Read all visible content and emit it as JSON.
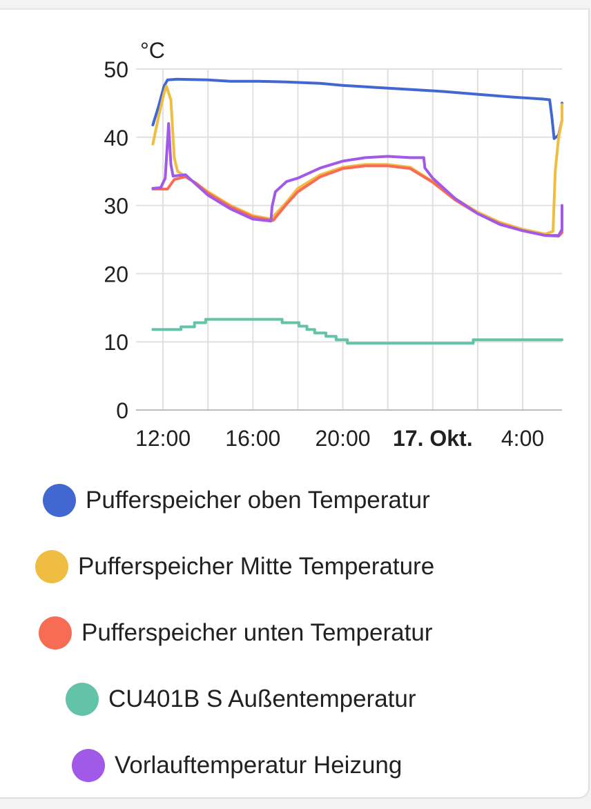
{
  "chart_data": {
    "type": "line",
    "ylabel": "°C",
    "ylim": [
      0,
      50
    ],
    "yticks": [
      0,
      10,
      20,
      30,
      40,
      50
    ],
    "x_unit": "hours since 12:00",
    "xlim": [
      -1.2,
      17.75
    ],
    "xticks": [
      {
        "x": 0,
        "label": "12:00",
        "bold": false
      },
      {
        "x": 4,
        "label": "16:00",
        "bold": false
      },
      {
        "x": 8,
        "label": "20:00",
        "bold": false
      },
      {
        "x": 12,
        "label": "17. Okt.",
        "bold": true
      },
      {
        "x": 16,
        "label": "4:00",
        "bold": false
      }
    ],
    "gridlines_x": [
      0,
      2,
      4,
      6,
      8,
      10,
      12,
      14,
      16
    ],
    "grid": true,
    "legend_position": "bottom",
    "series": [
      {
        "name": "Pufferspeicher oben Temperatur",
        "color": "#4267d0",
        "points": [
          [
            -0.45,
            41.8
          ],
          [
            -0.2,
            44.5
          ],
          [
            0.05,
            47.5
          ],
          [
            0.2,
            48.4
          ],
          [
            0.6,
            48.5
          ],
          [
            2,
            48.4
          ],
          [
            3,
            48.2
          ],
          [
            4.3,
            48.2
          ],
          [
            5.5,
            48.1
          ],
          [
            7,
            47.9
          ],
          [
            8,
            47.6
          ],
          [
            9.5,
            47.3
          ],
          [
            11,
            47.0
          ],
          [
            12.5,
            46.7
          ],
          [
            14,
            46.3
          ],
          [
            15.5,
            45.9
          ],
          [
            16.9,
            45.6
          ],
          [
            17.2,
            45.5
          ],
          [
            17.3,
            43.0
          ],
          [
            17.4,
            39.8
          ],
          [
            17.6,
            40.3
          ],
          [
            17.9,
            42.5
          ],
          [
            18.2,
            44.0
          ],
          [
            18.45,
            45.0
          ]
        ]
      },
      {
        "name": "Pufferspeicher Mitte Temperature",
        "color": "#f0bd43",
        "points": [
          [
            -0.45,
            39.0
          ],
          [
            -0.2,
            43.0
          ],
          [
            0.05,
            46.5
          ],
          [
            0.15,
            47.5
          ],
          [
            0.35,
            45.5
          ],
          [
            0.5,
            37.0
          ],
          [
            0.65,
            35.0
          ],
          [
            1.2,
            33.8
          ],
          [
            2,
            32.0
          ],
          [
            3,
            30.0
          ],
          [
            4,
            28.5
          ],
          [
            4.8,
            28.0
          ],
          [
            5.5,
            30.5
          ],
          [
            6,
            32.5
          ],
          [
            7,
            34.5
          ],
          [
            8,
            35.6
          ],
          [
            9,
            36.0
          ],
          [
            10,
            36.0
          ],
          [
            11,
            35.6
          ],
          [
            12,
            33.5
          ],
          [
            13,
            31.0
          ],
          [
            14,
            29.0
          ],
          [
            15,
            27.5
          ],
          [
            16,
            26.5
          ],
          [
            17,
            25.8
          ],
          [
            17.35,
            26.2
          ],
          [
            17.45,
            35.0
          ],
          [
            17.6,
            40.0
          ],
          [
            17.9,
            42.5
          ],
          [
            18.2,
            44.0
          ],
          [
            18.45,
            44.8
          ]
        ]
      },
      {
        "name": "Pufferspeicher unten Temperatur",
        "color": "#f76c55",
        "points": [
          [
            -0.45,
            32.4
          ],
          [
            -0.1,
            32.4
          ],
          [
            0.2,
            32.4
          ],
          [
            0.5,
            33.8
          ],
          [
            1,
            34.2
          ],
          [
            1.5,
            33.2
          ],
          [
            2,
            31.8
          ],
          [
            3,
            29.8
          ],
          [
            4,
            28.3
          ],
          [
            4.9,
            27.8
          ],
          [
            5.5,
            30.2
          ],
          [
            6,
            32.0
          ],
          [
            7,
            34.2
          ],
          [
            8,
            35.4
          ],
          [
            9,
            35.8
          ],
          [
            10,
            35.8
          ],
          [
            11,
            35.4
          ],
          [
            12,
            33.4
          ],
          [
            13,
            30.8
          ],
          [
            14,
            28.8
          ],
          [
            15,
            27.3
          ],
          [
            16,
            26.3
          ],
          [
            17,
            25.6
          ],
          [
            17.6,
            25.5
          ],
          [
            18.0,
            26.0
          ],
          [
            18.2,
            26.8
          ],
          [
            18.45,
            27.8
          ]
        ]
      },
      {
        "name": "CU401B S Außentemperatur",
        "color": "#63c3a8",
        "points": [
          [
            -0.45,
            11.8
          ],
          [
            0.8,
            11.8
          ],
          [
            0.8,
            12.2
          ],
          [
            1.4,
            12.2
          ],
          [
            1.4,
            12.8
          ],
          [
            1.9,
            12.8
          ],
          [
            1.9,
            13.3
          ],
          [
            5.3,
            13.3
          ],
          [
            5.3,
            12.8
          ],
          [
            6.05,
            12.8
          ],
          [
            6.05,
            12.3
          ],
          [
            6.4,
            12.3
          ],
          [
            6.4,
            11.8
          ],
          [
            6.75,
            11.8
          ],
          [
            6.75,
            11.3
          ],
          [
            7.25,
            11.3
          ],
          [
            7.25,
            10.8
          ],
          [
            7.7,
            10.8
          ],
          [
            7.7,
            10.3
          ],
          [
            8.2,
            10.3
          ],
          [
            8.2,
            9.8
          ],
          [
            13.8,
            9.8
          ],
          [
            13.8,
            10.3
          ],
          [
            18.45,
            10.3
          ]
        ]
      },
      {
        "name": "Vorlauftemperatur Heizung",
        "color": "#a05ae7",
        "points": [
          [
            -0.45,
            32.5
          ],
          [
            -0.1,
            32.6
          ],
          [
            0.1,
            34.0
          ],
          [
            0.25,
            42.0
          ],
          [
            0.35,
            36.0
          ],
          [
            0.45,
            34.3
          ],
          [
            1,
            34.5
          ],
          [
            1.5,
            33.0
          ],
          [
            2,
            31.5
          ],
          [
            3,
            29.5
          ],
          [
            4,
            28.0
          ],
          [
            4.8,
            27.7
          ],
          [
            4.85,
            29.8
          ],
          [
            5,
            32.0
          ],
          [
            5.5,
            33.5
          ],
          [
            6,
            34.0
          ],
          [
            7,
            35.5
          ],
          [
            8,
            36.5
          ],
          [
            9,
            37.0
          ],
          [
            10,
            37.2
          ],
          [
            11,
            37.0
          ],
          [
            11.6,
            37.0
          ],
          [
            11.65,
            35.5
          ],
          [
            12,
            34.0
          ],
          [
            13,
            31.0
          ],
          [
            14,
            28.8
          ],
          [
            15,
            27.2
          ],
          [
            16,
            26.3
          ],
          [
            17,
            25.6
          ],
          [
            17.6,
            25.6
          ],
          [
            18.0,
            26.5
          ],
          [
            18.2,
            28.5
          ],
          [
            18.45,
            30.0
          ]
        ]
      }
    ]
  }
}
